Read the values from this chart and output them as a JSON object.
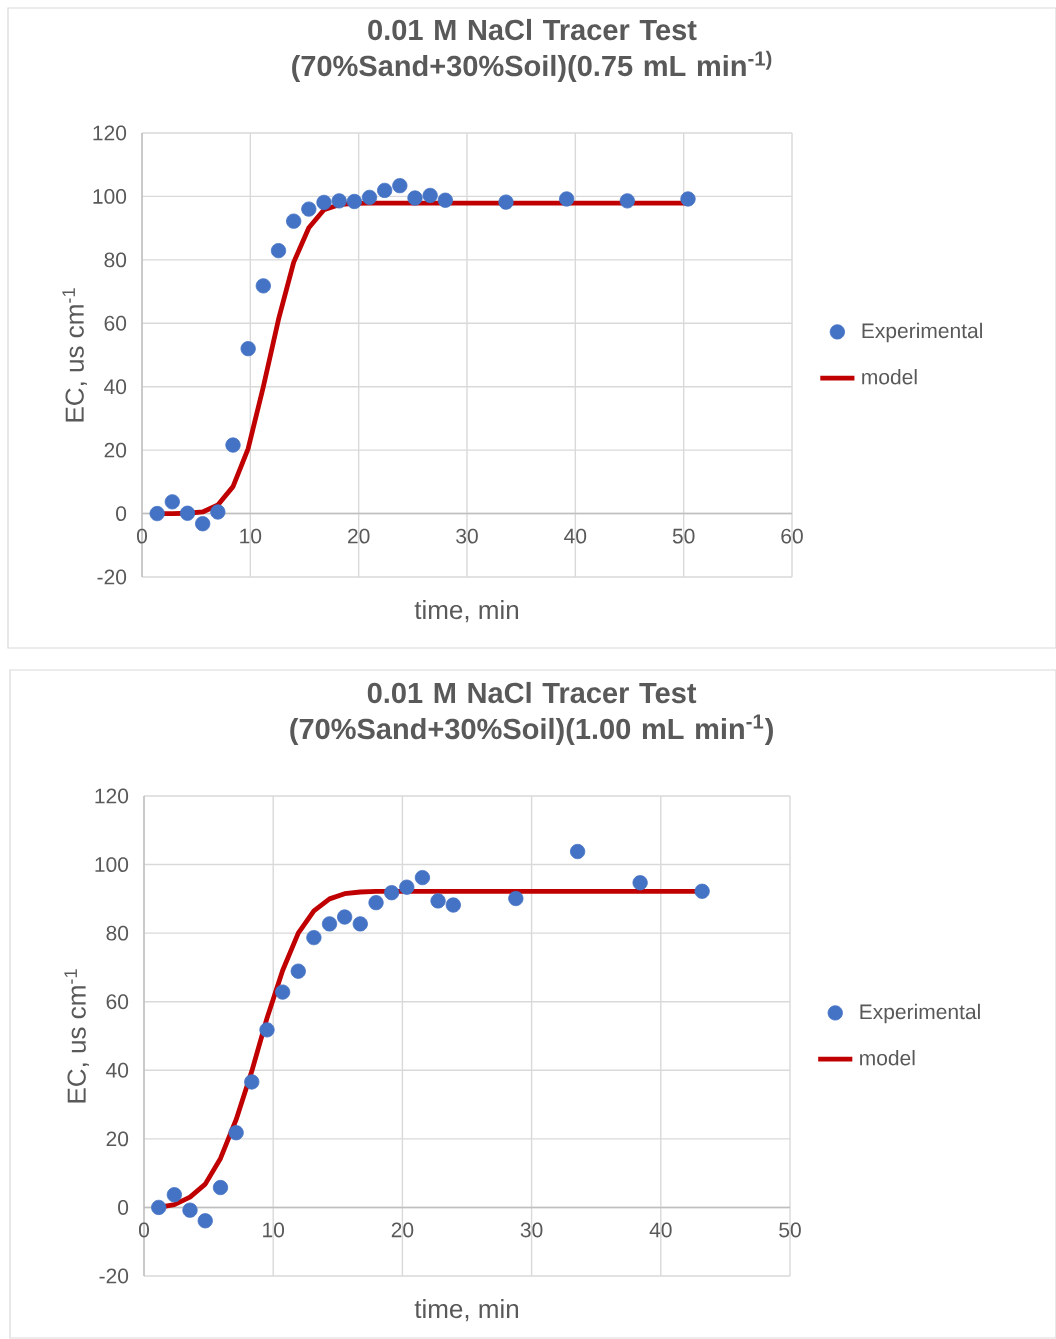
{
  "chart_data": [
    {
      "type": "scatter",
      "title": "0.01 M NaCl Tracer Test (70%Sand+30%Soil)(0.75 mL min$^{-1)}$",
      "xlabel": "time, min",
      "ylabel": "EC, us cm$^{-1}$",
      "xlim": [
        0,
        60
      ],
      "xticks": [
        0,
        10,
        20,
        30,
        40,
        50,
        60
      ],
      "ylim": [
        -20,
        120
      ],
      "yticks": [
        -20,
        0,
        20,
        40,
        60,
        80,
        100,
        120
      ],
      "grid": true,
      "legend": "right",
      "series": [
        {
          "name": "Experimental",
          "type": "scatter",
          "color": "#4472c4",
          "marker": "circle",
          "x": [
            1.4,
            2.8,
            4.2,
            5.6,
            7.0,
            8.4,
            9.8,
            11.2,
            12.6,
            14.0,
            15.4,
            16.8,
            18.2,
            19.6,
            21.0,
            22.4,
            23.8,
            25.2,
            26.6,
            28.0,
            33.6,
            39.2,
            44.8,
            50.4
          ],
          "values": [
            0,
            3.7,
            0.1,
            -3.2,
            0.5,
            21.6,
            52,
            71.8,
            82.9,
            92.2,
            96,
            98.1,
            98.6,
            98.4,
            99.7,
            101.9,
            103.4,
            99.5,
            100.3,
            98.8,
            98.2,
            99.2,
            98.6,
            99.2
          ]
        },
        {
          "name": "model",
          "type": "line",
          "color": "#c00000",
          "marker": "none",
          "line_style": "solid",
          "x": [
            1.4,
            2.8,
            4.2,
            5.6,
            7.0,
            8.4,
            9.8,
            11.2,
            12.6,
            14.0,
            15.4,
            16.8,
            18.2,
            19.6,
            21.0,
            50.4
          ],
          "values": [
            0,
            0,
            0.1,
            0.5,
            2.7,
            8.5,
            20.5,
            40,
            61.2,
            79.2,
            90.1,
            95.8,
            97.4,
            97.8,
            97.9,
            97.9
          ]
        }
      ]
    },
    {
      "type": "scatter",
      "title": "0.01 M NaCl Tracer Test (70%Sand+30%Soil)(1.00 mL min$^{-1}$)",
      "xlabel": "time, min",
      "ylabel": "EC, us cm$^{-1}$",
      "xlim": [
        0,
        50
      ],
      "xticks": [
        0,
        10,
        20,
        30,
        40,
        50
      ],
      "ylim": [
        -20,
        120
      ],
      "yticks": [
        -20,
        0,
        20,
        40,
        60,
        80,
        100,
        120
      ],
      "grid": true,
      "legend": "right",
      "series": [
        {
          "name": "Experimental",
          "type": "scatter",
          "color": "#4472c4",
          "marker": "circle",
          "x": [
            1.14,
            2.35,
            3.56,
            4.74,
            5.92,
            7.13,
            8.34,
            9.52,
            10.73,
            11.94,
            13.15,
            14.36,
            15.53,
            16.74,
            17.96,
            19.17,
            20.34,
            21.55,
            22.76,
            23.94,
            28.78,
            33.56,
            38.4,
            43.2
          ],
          "values": [
            0,
            3.7,
            -0.8,
            -3.9,
            5.8,
            21.8,
            36.6,
            51.8,
            62.8,
            68.9,
            78.7,
            82.7,
            84.7,
            82.7,
            88.9,
            91.8,
            93.4,
            96.2,
            89.4,
            88.2,
            90.1,
            103.8,
            94.7,
            92.2
          ]
        },
        {
          "name": "model",
          "type": "line",
          "color": "#c00000",
          "marker": "none",
          "line_style": "solid",
          "x": [
            1.14,
            2.35,
            3.56,
            4.74,
            5.92,
            7.13,
            8.34,
            9.52,
            10.73,
            11.94,
            13.15,
            14.36,
            15.53,
            16.74,
            17.96,
            43.2
          ],
          "values": [
            0,
            0.8,
            3,
            6.8,
            14.3,
            25.6,
            39.7,
            55.2,
            69.1,
            80,
            86.5,
            90,
            91.5,
            92,
            92.2,
            92.2
          ]
        }
      ]
    }
  ]
}
